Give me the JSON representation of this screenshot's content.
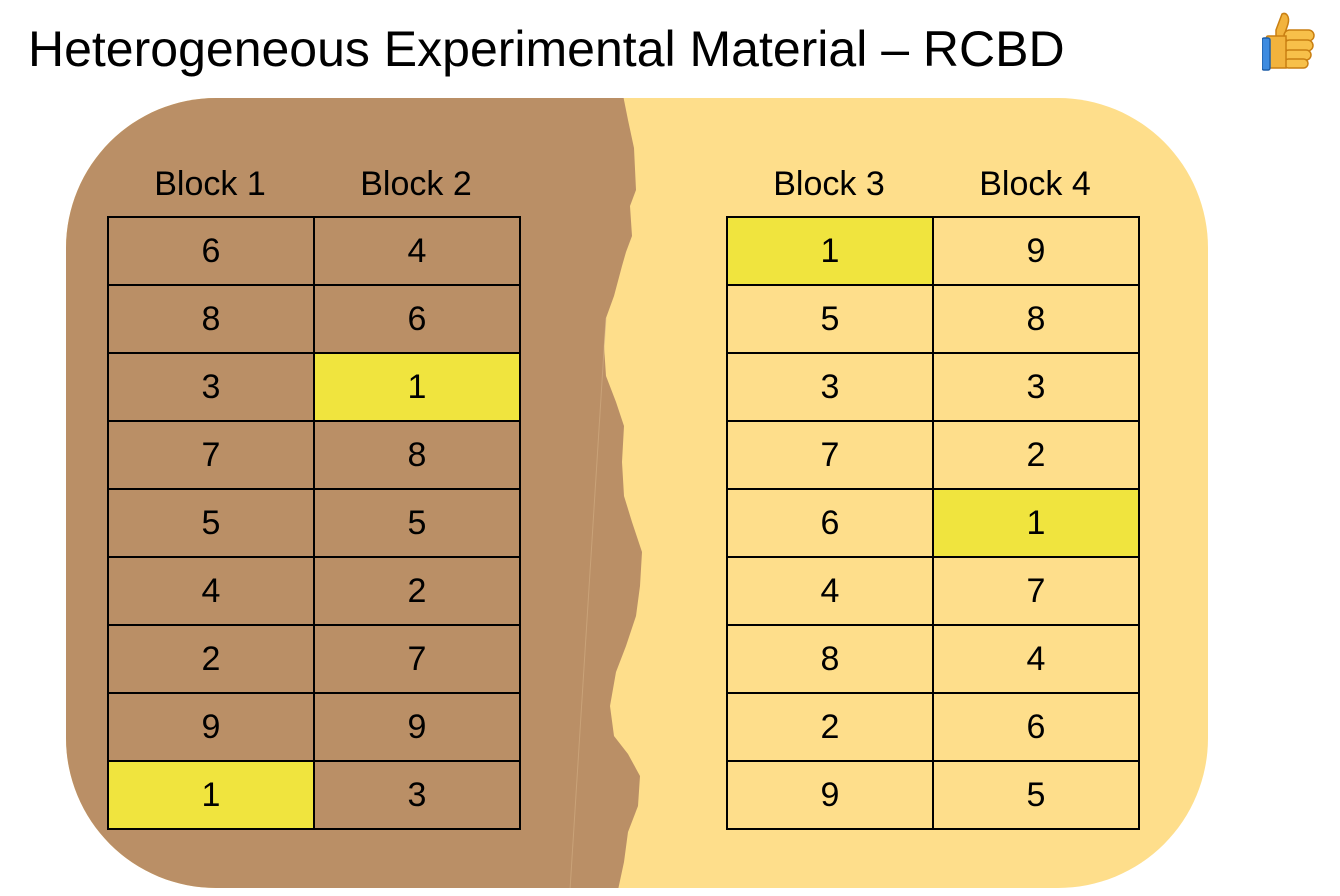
{
  "title": "Heterogeneous Experimental Material – RCBD",
  "title_icon": "thumbs-up-icon",
  "colors": {
    "dark_soil": "#BA8F66",
    "light_soil": "#FEDE8B",
    "highlight": "#F0E43E",
    "grid": "#000000"
  },
  "left_field": {
    "labels": [
      "Block 1",
      "Block 2"
    ],
    "rows": [
      [
        "6",
        "4"
      ],
      [
        "8",
        "6"
      ],
      [
        "3",
        "1"
      ],
      [
        "7",
        "8"
      ],
      [
        "5",
        "5"
      ],
      [
        "4",
        "2"
      ],
      [
        "2",
        "7"
      ],
      [
        "9",
        "9"
      ],
      [
        "1",
        "3"
      ]
    ],
    "highlighted": [
      [
        2,
        1
      ],
      [
        8,
        0
      ]
    ]
  },
  "right_field": {
    "labels": [
      "Block 3",
      "Block 4"
    ],
    "rows": [
      [
        "1",
        "9"
      ],
      [
        "5",
        "8"
      ],
      [
        "3",
        "3"
      ],
      [
        "7",
        "2"
      ],
      [
        "6",
        "1"
      ],
      [
        "4",
        "7"
      ],
      [
        "8",
        "4"
      ],
      [
        "2",
        "6"
      ],
      [
        "9",
        "5"
      ]
    ],
    "highlighted": [
      [
        0,
        0
      ],
      [
        4,
        1
      ]
    ]
  }
}
